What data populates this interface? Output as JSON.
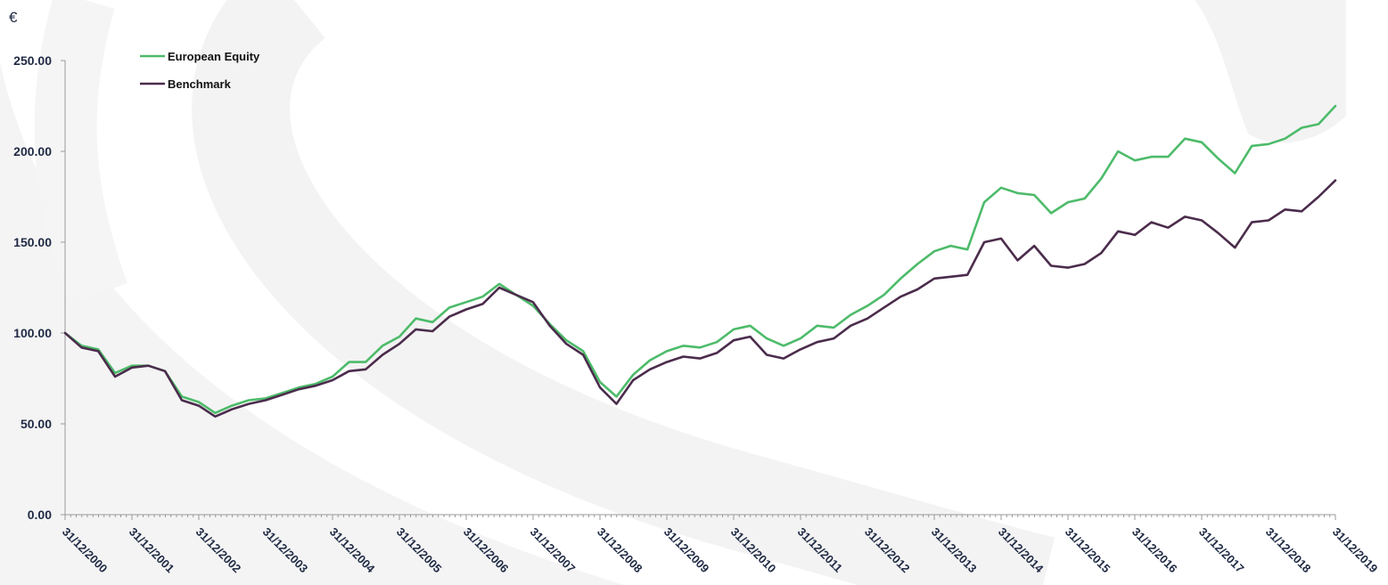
{
  "chart_data": {
    "type": "line",
    "ylabel": "€",
    "ylim": [
      0,
      250
    ],
    "yticks": [
      "0.00",
      "50.00",
      "100.00",
      "150.00",
      "200.00",
      "250.00"
    ],
    "xlim": [
      "31/12/2000",
      "31/12/2019"
    ],
    "xticks": [
      "31/12/2000",
      "31/12/2001",
      "31/12/2002",
      "31/12/2003",
      "31/12/2004",
      "31/12/2005",
      "31/12/2006",
      "31/12/2007",
      "31/12/2008",
      "31/12/2009",
      "31/12/2010",
      "31/12/2011",
      "31/12/2012",
      "31/12/2013",
      "31/12/2014",
      "31/12/2015",
      "31/12/2016",
      "31/12/2017",
      "31/12/2018",
      "31/12/2019"
    ],
    "grid": false,
    "legend_position": "top-left",
    "x": [
      "31/12/2000",
      "31/03/2001",
      "30/06/2001",
      "30/09/2001",
      "31/12/2001",
      "31/03/2002",
      "30/06/2002",
      "30/09/2002",
      "31/12/2002",
      "31/03/2003",
      "30/06/2003",
      "30/09/2003",
      "31/12/2003",
      "31/03/2004",
      "30/06/2004",
      "30/09/2004",
      "31/12/2004",
      "31/03/2005",
      "30/06/2005",
      "30/09/2005",
      "31/12/2005",
      "31/03/2006",
      "30/06/2006",
      "30/09/2006",
      "31/12/2006",
      "31/03/2007",
      "30/06/2007",
      "30/09/2007",
      "31/12/2007",
      "31/03/2008",
      "30/06/2008",
      "30/09/2008",
      "31/12/2008",
      "31/03/2009",
      "30/06/2009",
      "30/09/2009",
      "31/12/2009",
      "31/03/2010",
      "30/06/2010",
      "30/09/2010",
      "31/12/2010",
      "31/03/2011",
      "30/06/2011",
      "30/09/2011",
      "31/12/2011",
      "31/03/2012",
      "30/06/2012",
      "30/09/2012",
      "31/12/2012",
      "31/03/2013",
      "30/06/2013",
      "30/09/2013",
      "31/12/2013",
      "31/03/2014",
      "30/06/2014",
      "30/09/2014",
      "31/12/2014",
      "31/03/2015",
      "30/06/2015",
      "30/09/2015",
      "31/12/2015",
      "31/03/2016",
      "30/06/2016",
      "30/09/2016",
      "31/12/2016",
      "31/03/2017",
      "30/06/2017",
      "30/09/2017",
      "31/12/2017",
      "31/03/2018",
      "30/06/2018",
      "30/09/2018",
      "31/12/2018",
      "31/03/2019",
      "30/06/2019",
      "30/09/2019",
      "31/12/2019"
    ],
    "series": [
      {
        "name": "European Equity",
        "color": "#4dbb6a",
        "values": [
          100,
          93,
          91,
          78,
          82,
          82,
          79,
          65,
          62,
          56,
          60,
          63,
          64,
          67,
          70,
          72,
          76,
          84,
          84,
          93,
          98,
          108,
          106,
          114,
          117,
          120,
          127,
          121,
          115,
          105,
          96,
          90,
          73,
          65,
          77,
          85,
          90,
          93,
          92,
          95,
          102,
          104,
          97,
          93,
          97,
          104,
          103,
          110,
          115,
          121,
          130,
          138,
          145,
          148,
          146,
          172,
          180,
          177,
          176,
          166,
          172,
          174,
          185,
          200,
          195,
          197,
          197,
          207,
          205,
          196,
          188,
          203,
          204,
          207,
          213,
          215,
          225
        ]
      },
      {
        "name": "Benchmark",
        "color": "#4b2c4c",
        "values": [
          100,
          92,
          90,
          76,
          81,
          82,
          79,
          63,
          60,
          54,
          58,
          61,
          63,
          66,
          69,
          71,
          74,
          79,
          80,
          88,
          94,
          102,
          101,
          109,
          113,
          116,
          125,
          121,
          117,
          104,
          94,
          88,
          70,
          61,
          74,
          80,
          84,
          87,
          86,
          89,
          96,
          98,
          88,
          86,
          91,
          95,
          97,
          104,
          108,
          114,
          120,
          124,
          130,
          131,
          132,
          150,
          152,
          140,
          148,
          137,
          136,
          138,
          144,
          156,
          154,
          161,
          158,
          164,
          162,
          155,
          147,
          161,
          162,
          168,
          167,
          175,
          184
        ]
      }
    ]
  }
}
